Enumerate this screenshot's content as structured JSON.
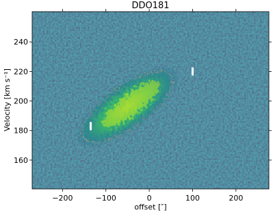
{
  "chart_data": {
    "type": "pv-diagram",
    "title": "DDO181",
    "xlabel": "offset [″]",
    "ylabel": "Velocity [km s⁻¹]",
    "xlim": [
      -270,
      276
    ],
    "ylim": [
      140.5,
      260.5
    ],
    "xticks": [
      {
        "value": -200,
        "label": "−200"
      },
      {
        "value": -100,
        "label": "−100"
      },
      0,
      100,
      200
    ],
    "yticks": [
      160,
      180,
      200,
      220,
      240
    ],
    "markers": {
      "color": "#ffffff",
      "x": [
        -135,
        100
      ],
      "y": [
        183,
        220
      ]
    }
  }
}
